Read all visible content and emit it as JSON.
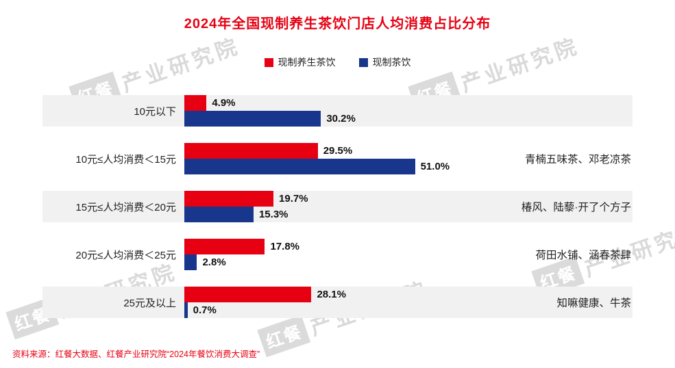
{
  "title": "2024年全国现制养生茶饮门店人均消费占比分布",
  "chart_data": {
    "type": "bar",
    "orientation": "horizontal",
    "title": "2024年全国现制养生茶饮门店人均消费占比分布",
    "categories": [
      "10元以下",
      "10元≤人均消费＜15元",
      "15元≤人均消费＜20元",
      "20元≤人均消费＜25元",
      "25元及以上"
    ],
    "series": [
      {
        "name": "现制养生茶饮",
        "color": "#e60012",
        "values": [
          4.9,
          29.5,
          19.7,
          17.8,
          28.1
        ]
      },
      {
        "name": "现制茶饮",
        "color": "#17368c",
        "values": [
          30.2,
          51.0,
          15.3,
          2.8,
          0.7
        ]
      }
    ],
    "annotations": [
      "",
      "青楠五味茶、邓老凉茶",
      "椿风、陆藜·开了个方子",
      "荷田水铺、涵春茶肆",
      "知嘛健康、牛茶"
    ],
    "value_suffix": "%",
    "xlim": [
      0,
      55
    ],
    "legend_position": "top",
    "grid": false
  },
  "source": "资料来源：红餐大数据、红餐产业研究院“2024年餐饮消费大调查”",
  "watermark": {
    "logo": "红餐",
    "text": "产业研究院"
  },
  "colors": {
    "title": "#e60012",
    "herbal": "#e60012",
    "tea": "#17368c",
    "band": "#f1f1f1"
  }
}
